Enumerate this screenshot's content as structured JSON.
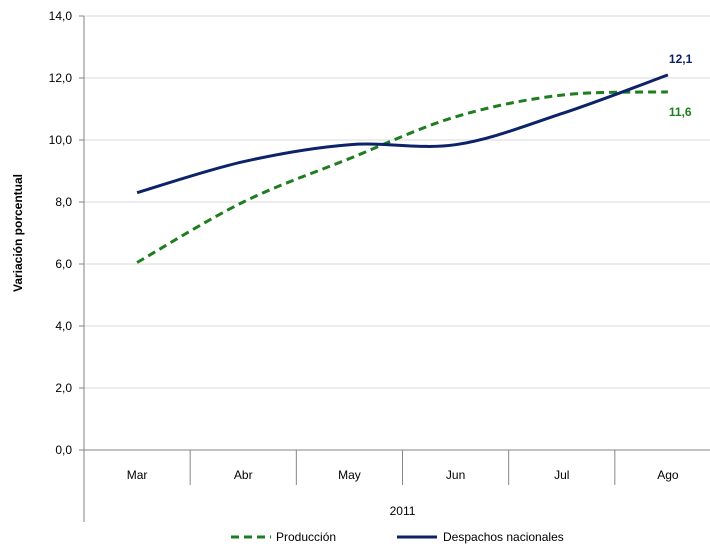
{
  "chart_data": {
    "type": "line",
    "categories": [
      "Mar",
      "Abr",
      "May",
      "Jun",
      "Jul",
      "Ago"
    ],
    "group_label": "2011",
    "ylabel": "Variación porcentual",
    "ylim": [
      0,
      14
    ],
    "yticks": [
      "0,0",
      "2,0",
      "4,0",
      "6,0",
      "8,0",
      "10,0",
      "12,0",
      "14,0"
    ],
    "grid": true,
    "legend_position": "bottom",
    "series": [
      {
        "name": "Producción",
        "values": [
          6.05,
          8.0,
          9.4,
          10.75,
          11.45,
          11.55
        ],
        "color": "#1e7d1e",
        "style": "dashed",
        "end_label": "11,6"
      },
      {
        "name": "Despachos nacionales",
        "values": [
          8.3,
          9.3,
          9.85,
          9.85,
          10.85,
          12.1
        ],
        "color": "#0d2369",
        "style": "solid",
        "end_label": "12,1"
      }
    ]
  }
}
